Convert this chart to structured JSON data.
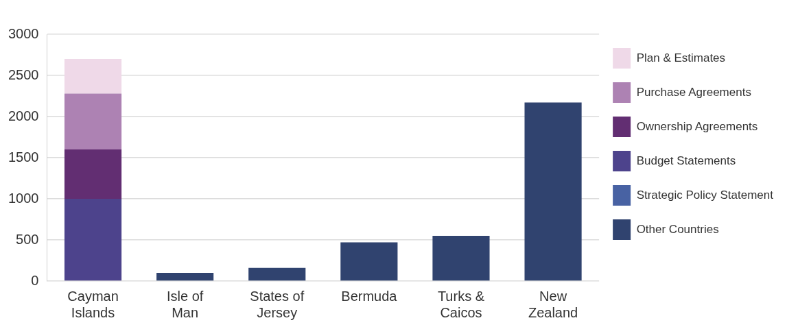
{
  "chart_data": {
    "type": "bar",
    "stacked": true,
    "categories": [
      "Cayman Islands",
      "Isle of Man",
      "States of Jersey",
      "Bermuda",
      "Turks & Caicos",
      "New Zealand"
    ],
    "series": [
      {
        "name": "Other Countries",
        "color": "#30436f",
        "values": [
          null,
          100,
          160,
          470,
          550,
          2170
        ]
      },
      {
        "name": "Strategic Policy Statement",
        "color": "#4862a3",
        "values": [
          null,
          null,
          null,
          null,
          null,
          null
        ]
      },
      {
        "name": "Budget Statements",
        "color": "#4d438c",
        "values": [
          1000,
          null,
          null,
          null,
          null,
          null
        ]
      },
      {
        "name": "Ownership Agreements",
        "color": "#622e72",
        "values": [
          600,
          null,
          null,
          null,
          null,
          null
        ]
      },
      {
        "name": "Purchase Agreements",
        "color": "#ad82b3",
        "values": [
          680,
          null,
          null,
          null,
          null,
          null
        ]
      },
      {
        "name": "Plan & Estimates",
        "color": "#efd9e8",
        "values": [
          420,
          null,
          null,
          null,
          null,
          null
        ]
      }
    ],
    "ylim": [
      0,
      3000
    ],
    "yticks": [
      0,
      500,
      1000,
      1500,
      2000,
      2500,
      3000
    ],
    "grid": "y",
    "legend": "right"
  }
}
